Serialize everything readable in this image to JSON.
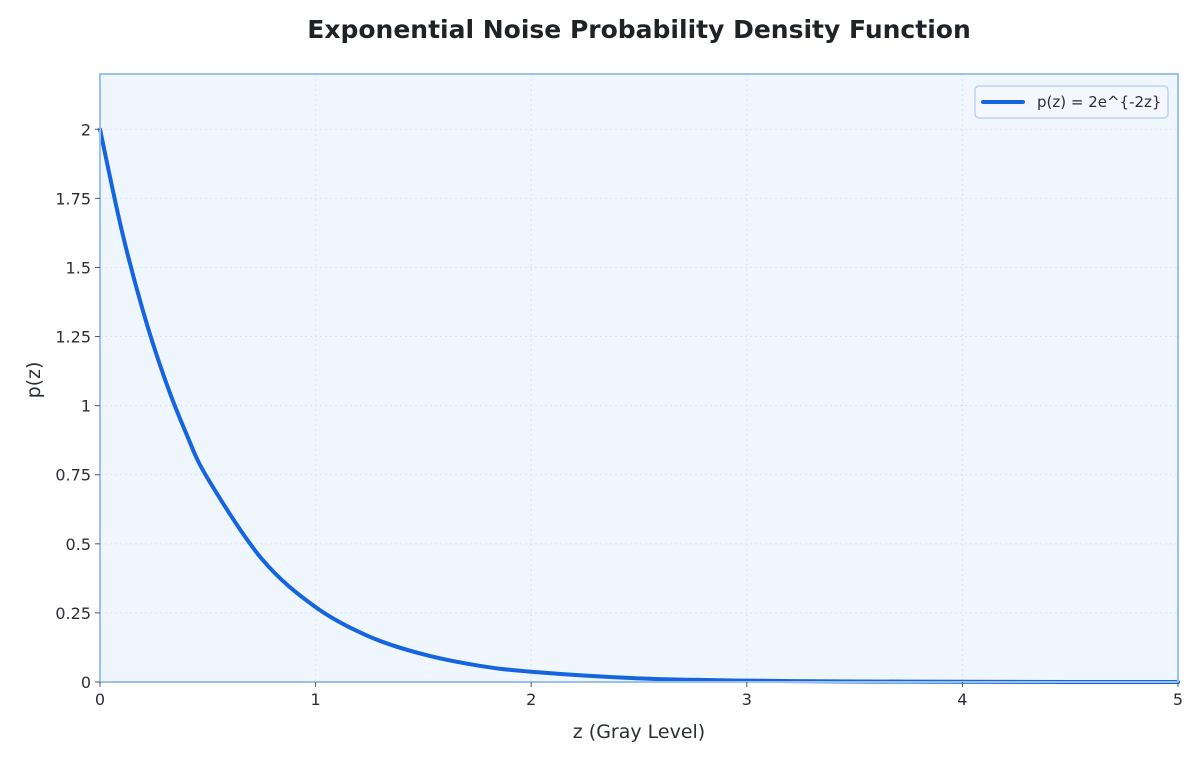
{
  "chart_data": {
    "type": "line",
    "title": "Exponential Noise Probability Density Function",
    "xlabel": "z (Gray Level)",
    "ylabel": "p(z)",
    "xlim": [
      0,
      5
    ],
    "ylim": [
      0,
      2.2
    ],
    "x_ticks": [
      0,
      1,
      2,
      3,
      4,
      5
    ],
    "x_tick_labels": [
      "0",
      "1",
      "2",
      "3",
      "4",
      "5"
    ],
    "y_ticks": [
      0,
      0.25,
      0.5,
      0.75,
      1,
      1.25,
      1.5,
      1.75,
      2
    ],
    "y_tick_labels": [
      "0",
      "0.25",
      "0.5",
      "0.75",
      "1",
      "1.25",
      "1.5",
      "1.75",
      "2"
    ],
    "grid": true,
    "legend_position": "top-right",
    "series": [
      {
        "name": "p(z) = 2e^{-2z}",
        "color": "#1565e0",
        "x": [
          0,
          0.1,
          0.2,
          0.3,
          0.4,
          0.5,
          0.75,
          1,
          1.25,
          1.5,
          1.75,
          2,
          2.5,
          3,
          3.5,
          4,
          4.5,
          5
        ],
        "y": [
          2,
          1.637,
          1.341,
          1.098,
          0.899,
          0.736,
          0.446,
          0.271,
          0.164,
          0.1,
          0.06,
          0.037,
          0.013,
          0.005,
          0.002,
          0.001,
          0.0002,
          0.0001
        ]
      }
    ]
  },
  "colors": {
    "plot_background": "#f0f6fd",
    "plot_border": "#9cc0f0",
    "grid": "#dbe3ee",
    "legend_border": "#b9d2f2",
    "legend_background": "#f4f8fe"
  }
}
